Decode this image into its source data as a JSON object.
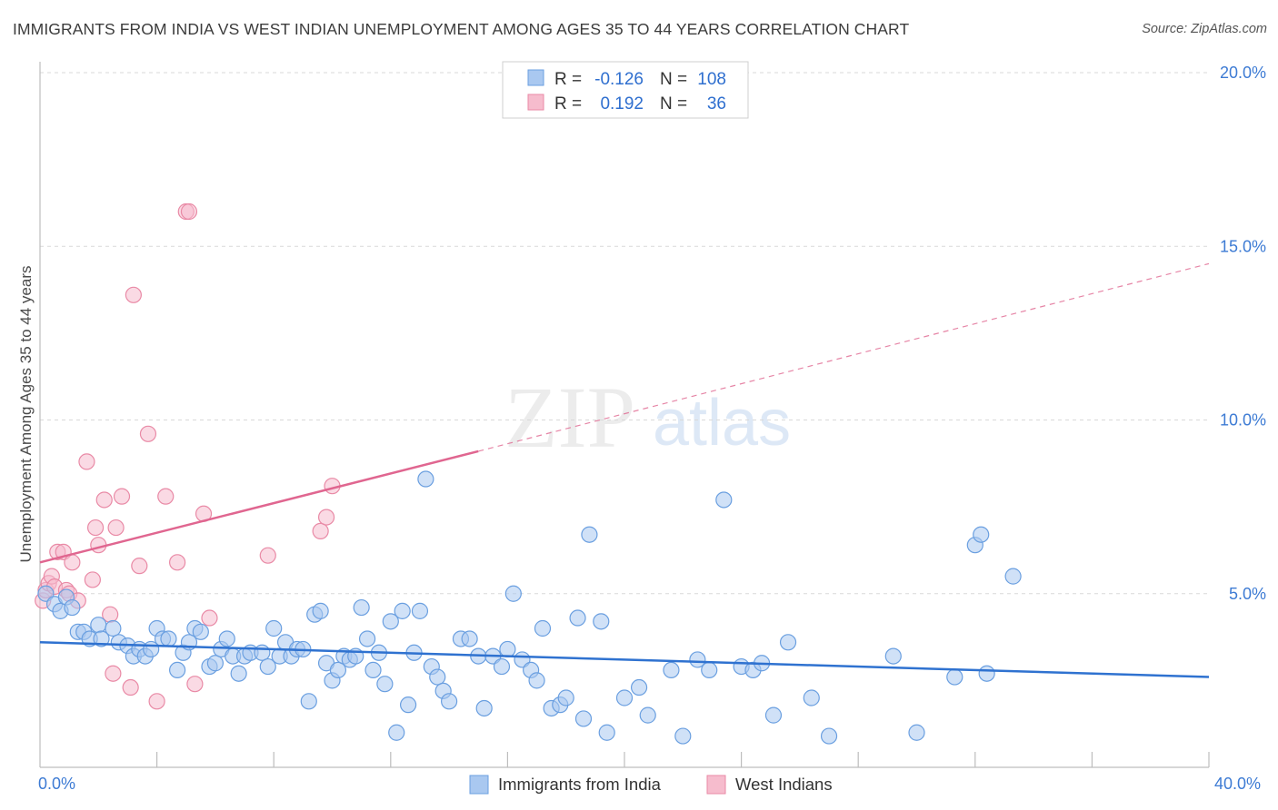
{
  "title": "IMMIGRANTS FROM INDIA VS WEST INDIAN UNEMPLOYMENT AMONG AGES 35 TO 44 YEARS CORRELATION CHART",
  "source": "Source: ZipAtlas.com",
  "watermark": {
    "zip": "ZIP",
    "atlas": "atlas"
  },
  "colors": {
    "blue_fill": "#a9c8f0",
    "blue_stroke": "#6a9fe0",
    "blue_line": "#2f72d0",
    "pink_fill": "#f6bccd",
    "pink_stroke": "#e98aa6",
    "pink_line": "#e06690",
    "grid": "#d9d9d9",
    "tick_text": "#3d7bd4"
  },
  "legend": {
    "rows": [
      {
        "r_label": "R =",
        "r_value": "-0.126",
        "n_label": "N =",
        "n_value": "108",
        "series": "blue"
      },
      {
        "r_label": "R =",
        "r_value": "0.192",
        "n_label": "N =",
        "n_value": "36",
        "series": "pink"
      }
    ]
  },
  "bottom_legend": [
    {
      "label": "Immigrants from India",
      "series": "blue"
    },
    {
      "label": "West Indians",
      "series": "pink"
    }
  ],
  "chart_data": {
    "type": "scatter",
    "title": "IMMIGRANTS FROM INDIA VS WEST INDIAN UNEMPLOYMENT AMONG AGES 35 TO 44 YEARS CORRELATION CHART",
    "xlabel": "",
    "ylabel": "Unemployment Among Ages 35 to 44 years",
    "xlim": [
      0,
      40
    ],
    "ylim": [
      0,
      20
    ],
    "x_tick_labels": [
      "0.0%",
      "40.0%"
    ],
    "y_ticks": [
      {
        "value": 5,
        "label": "5.0%"
      },
      {
        "value": 10,
        "label": "10.0%"
      },
      {
        "value": 15,
        "label": "15.0%"
      },
      {
        "value": 20,
        "label": "20.0%"
      }
    ],
    "series": [
      {
        "name": "Immigrants from India",
        "color": "blue",
        "trend": {
          "x": [
            0,
            40
          ],
          "y": [
            3.6,
            2.6
          ],
          "dashed_to": null
        },
        "points": [
          [
            0.2,
            5.0
          ],
          [
            0.5,
            4.7
          ],
          [
            0.7,
            4.5
          ],
          [
            0.9,
            4.9
          ],
          [
            1.1,
            4.6
          ],
          [
            1.3,
            3.9
          ],
          [
            1.5,
            3.9
          ],
          [
            1.7,
            3.7
          ],
          [
            2.0,
            4.1
          ],
          [
            2.1,
            3.7
          ],
          [
            2.5,
            4.0
          ],
          [
            2.7,
            3.6
          ],
          [
            3.0,
            3.5
          ],
          [
            3.2,
            3.2
          ],
          [
            3.4,
            3.4
          ],
          [
            3.6,
            3.2
          ],
          [
            3.8,
            3.4
          ],
          [
            4.0,
            4.0
          ],
          [
            4.2,
            3.7
          ],
          [
            4.4,
            3.7
          ],
          [
            4.7,
            2.8
          ],
          [
            4.9,
            3.3
          ],
          [
            5.1,
            3.6
          ],
          [
            5.3,
            4.0
          ],
          [
            5.5,
            3.9
          ],
          [
            5.8,
            2.9
          ],
          [
            6.0,
            3.0
          ],
          [
            6.2,
            3.4
          ],
          [
            6.4,
            3.7
          ],
          [
            6.6,
            3.2
          ],
          [
            6.8,
            2.7
          ],
          [
            7.0,
            3.2
          ],
          [
            7.2,
            3.3
          ],
          [
            7.6,
            3.3
          ],
          [
            7.8,
            2.9
          ],
          [
            8.0,
            4.0
          ],
          [
            8.2,
            3.2
          ],
          [
            8.4,
            3.6
          ],
          [
            8.6,
            3.2
          ],
          [
            8.8,
            3.4
          ],
          [
            9.0,
            3.4
          ],
          [
            9.2,
            1.9
          ],
          [
            9.4,
            4.4
          ],
          [
            9.6,
            4.5
          ],
          [
            9.8,
            3.0
          ],
          [
            10.0,
            2.5
          ],
          [
            10.2,
            2.8
          ],
          [
            10.4,
            3.2
          ],
          [
            10.6,
            3.1
          ],
          [
            10.8,
            3.2
          ],
          [
            11.0,
            4.6
          ],
          [
            11.2,
            3.7
          ],
          [
            11.4,
            2.8
          ],
          [
            11.6,
            3.3
          ],
          [
            11.8,
            2.4
          ],
          [
            12.0,
            4.2
          ],
          [
            12.2,
            1.0
          ],
          [
            12.4,
            4.5
          ],
          [
            12.6,
            1.8
          ],
          [
            12.8,
            3.3
          ],
          [
            13.0,
            4.5
          ],
          [
            13.2,
            8.3
          ],
          [
            13.4,
            2.9
          ],
          [
            13.6,
            2.6
          ],
          [
            13.8,
            2.2
          ],
          [
            14.0,
            1.9
          ],
          [
            14.4,
            3.7
          ],
          [
            14.7,
            3.7
          ],
          [
            15.0,
            3.2
          ],
          [
            15.2,
            1.7
          ],
          [
            15.5,
            3.2
          ],
          [
            15.8,
            2.9
          ],
          [
            16.0,
            3.4
          ],
          [
            16.2,
            5.0
          ],
          [
            16.5,
            3.1
          ],
          [
            16.8,
            2.8
          ],
          [
            17.0,
            2.5
          ],
          [
            17.2,
            4.0
          ],
          [
            17.5,
            1.7
          ],
          [
            17.8,
            1.8
          ],
          [
            18.0,
            2.0
          ],
          [
            18.4,
            4.3
          ],
          [
            18.6,
            1.4
          ],
          [
            18.8,
            6.7
          ],
          [
            19.2,
            4.2
          ],
          [
            19.4,
            1.0
          ],
          [
            20.0,
            2.0
          ],
          [
            20.5,
            2.3
          ],
          [
            20.8,
            1.5
          ],
          [
            21.6,
            2.8
          ],
          [
            22.0,
            0.9
          ],
          [
            22.5,
            3.1
          ],
          [
            22.9,
            2.8
          ],
          [
            23.4,
            7.7
          ],
          [
            24.0,
            2.9
          ],
          [
            24.4,
            2.8
          ],
          [
            24.7,
            3.0
          ],
          [
            25.1,
            1.5
          ],
          [
            25.6,
            3.6
          ],
          [
            26.4,
            2.0
          ],
          [
            27.0,
            0.9
          ],
          [
            29.2,
            3.2
          ],
          [
            30.0,
            1.0
          ],
          [
            31.3,
            2.6
          ],
          [
            32.0,
            6.4
          ],
          [
            32.2,
            6.7
          ],
          [
            32.4,
            2.7
          ],
          [
            33.3,
            5.5
          ]
        ]
      },
      {
        "name": "West Indians",
        "color": "pink",
        "trend": {
          "x": [
            0,
            15
          ],
          "y": [
            5.9,
            9.1
          ],
          "dashed_to": [
            40,
            14.5
          ]
        },
        "points": [
          [
            0.1,
            4.8
          ],
          [
            0.2,
            5.1
          ],
          [
            0.3,
            5.3
          ],
          [
            0.4,
            5.5
          ],
          [
            0.5,
            5.2
          ],
          [
            0.6,
            6.2
          ],
          [
            0.8,
            6.2
          ],
          [
            0.9,
            5.1
          ],
          [
            1.0,
            5.0
          ],
          [
            1.1,
            5.9
          ],
          [
            1.3,
            4.8
          ],
          [
            1.6,
            8.8
          ],
          [
            1.8,
            5.4
          ],
          [
            1.9,
            6.9
          ],
          [
            2.0,
            6.4
          ],
          [
            2.2,
            7.7
          ],
          [
            2.4,
            4.4
          ],
          [
            2.5,
            2.7
          ],
          [
            2.6,
            6.9
          ],
          [
            2.8,
            7.8
          ],
          [
            3.1,
            2.3
          ],
          [
            3.2,
            13.6
          ],
          [
            3.4,
            5.8
          ],
          [
            3.7,
            9.6
          ],
          [
            4.0,
            1.9
          ],
          [
            4.3,
            7.8
          ],
          [
            4.7,
            5.9
          ],
          [
            5.0,
            16.0
          ],
          [
            5.1,
            16.0
          ],
          [
            5.3,
            2.4
          ],
          [
            5.6,
            7.3
          ],
          [
            5.8,
            4.3
          ],
          [
            7.8,
            6.1
          ],
          [
            9.6,
            6.8
          ],
          [
            9.8,
            7.2
          ],
          [
            10.0,
            8.1
          ]
        ]
      }
    ]
  }
}
